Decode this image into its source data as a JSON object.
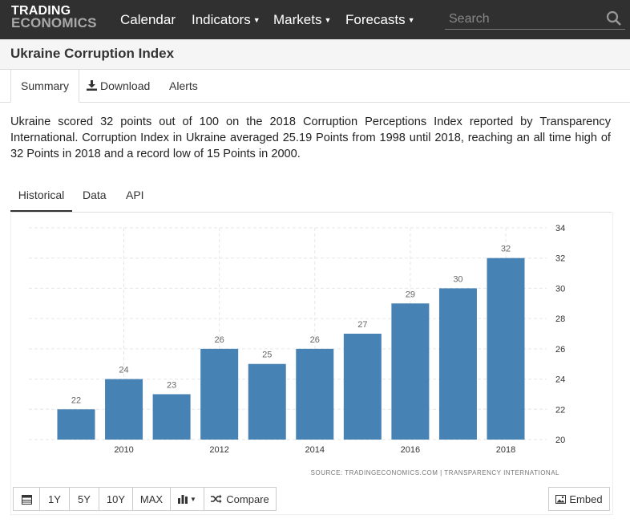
{
  "header": {
    "logo_line1": "TRADING",
    "logo_line2": "ECONOMICS",
    "nav": [
      {
        "label": "Calendar",
        "dropdown": false
      },
      {
        "label": "Indicators",
        "dropdown": true
      },
      {
        "label": "Markets",
        "dropdown": true
      },
      {
        "label": "Forecasts",
        "dropdown": true
      }
    ],
    "search_placeholder": "Search"
  },
  "page": {
    "title": "Ukraine Corruption Index",
    "tabs": [
      "Summary",
      "Download",
      "Alerts"
    ],
    "active_tab": "Summary",
    "description": "Ukraine scored 32 points out of 100 on the 2018 Corruption Perceptions Index reported by Transparency International. Corruption Index in Ukraine averaged 25.19 Points from 1998 until 2018, reaching an all time high of 32 Points in 2018 and a record low of 15 Points in 2000.",
    "chart_tabs": [
      "Historical",
      "Data",
      "API"
    ],
    "active_chart_tab": "Historical"
  },
  "chart_data": {
    "type": "bar",
    "x": [
      2009,
      2010,
      2011,
      2012,
      2013,
      2014,
      2015,
      2016,
      2017,
      2018
    ],
    "values": [
      22,
      24,
      23,
      26,
      25,
      26,
      27,
      29,
      30,
      32
    ],
    "x_tick_labels": [
      "2010",
      "2012",
      "2014",
      "2016",
      "2018"
    ],
    "y_tick_labels": [
      "20",
      "22",
      "24",
      "26",
      "28",
      "30",
      "32",
      "34"
    ],
    "ylim": [
      20,
      34
    ],
    "bar_color": "#4682b4",
    "grid": "vertical dashed",
    "y_axis_position": "right",
    "source": "SOURCE: TRADINGECONOMICS.COM  |  TRANSPARENCY INTERNATIONAL"
  },
  "toolbar": {
    "buttons": [
      "1Y",
      "5Y",
      "10Y",
      "MAX"
    ],
    "compare_label": "Compare",
    "embed_label": "Embed"
  },
  "colors": {
    "header_bg": "#303030",
    "bar": "#4682b4"
  }
}
